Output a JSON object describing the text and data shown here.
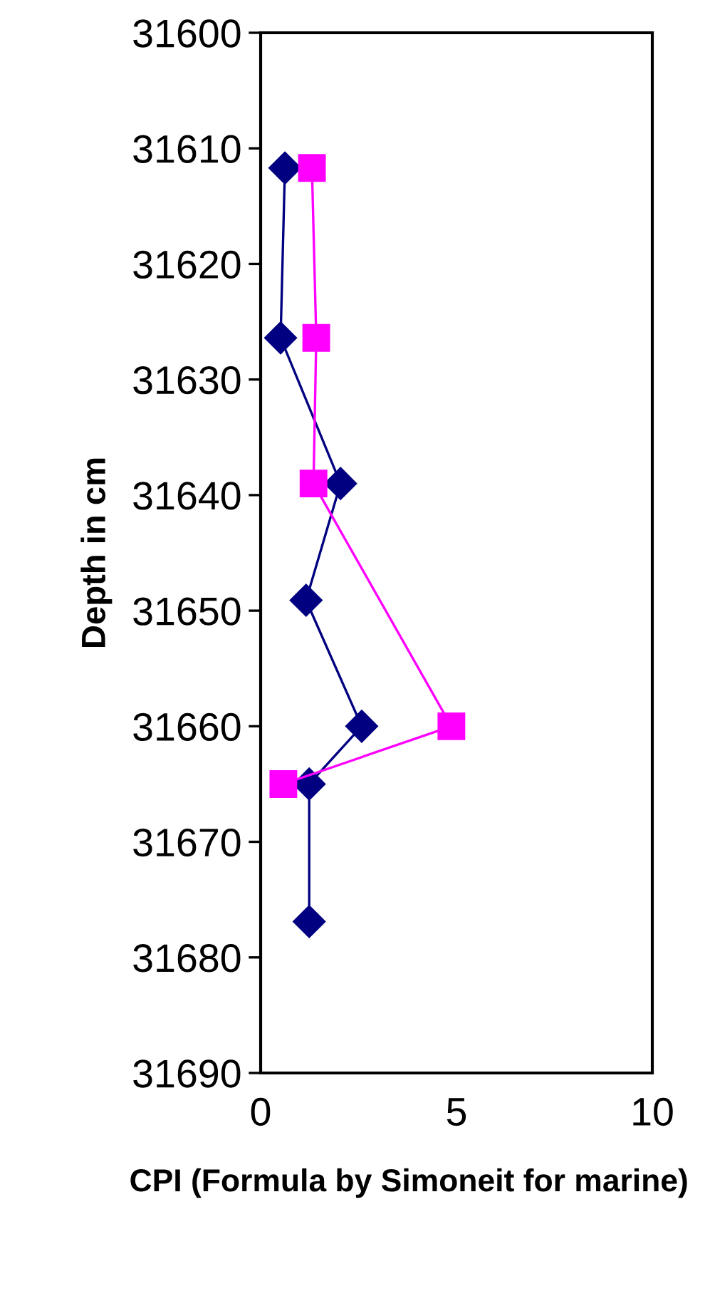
{
  "chart_data": {
    "type": "line",
    "xlabel": "CPI (Formula by Simoneit for marine)",
    "ylabel": "Depth in cm",
    "series": [
      {
        "color": "#000080",
        "marker": "diamond",
        "x": [
          0.62,
          0.51,
          2.04,
          1.16,
          2.58,
          1.24,
          1.24
        ],
        "values": [
          31611.7,
          31626.4,
          31639.0,
          31649.1,
          31660.0,
          31665.0,
          31676.9
        ]
      },
      {
        "color": "#ff00ff",
        "marker": "square",
        "x": [
          1.31,
          1.42,
          1.35,
          4.87,
          0.58
        ],
        "values": [
          31611.7,
          31626.4,
          31639.0,
          31660.0,
          31665.0
        ]
      }
    ],
    "xlim": [
      0,
      10
    ],
    "xticks": [
      0,
      5,
      10
    ],
    "ylim": [
      31690,
      31600
    ],
    "yticks": [
      31600,
      31610,
      31620,
      31630,
      31640,
      31650,
      31660,
      31670,
      31680,
      31690
    ],
    "grid": false,
    "legend": false,
    "line_style": "solid"
  }
}
